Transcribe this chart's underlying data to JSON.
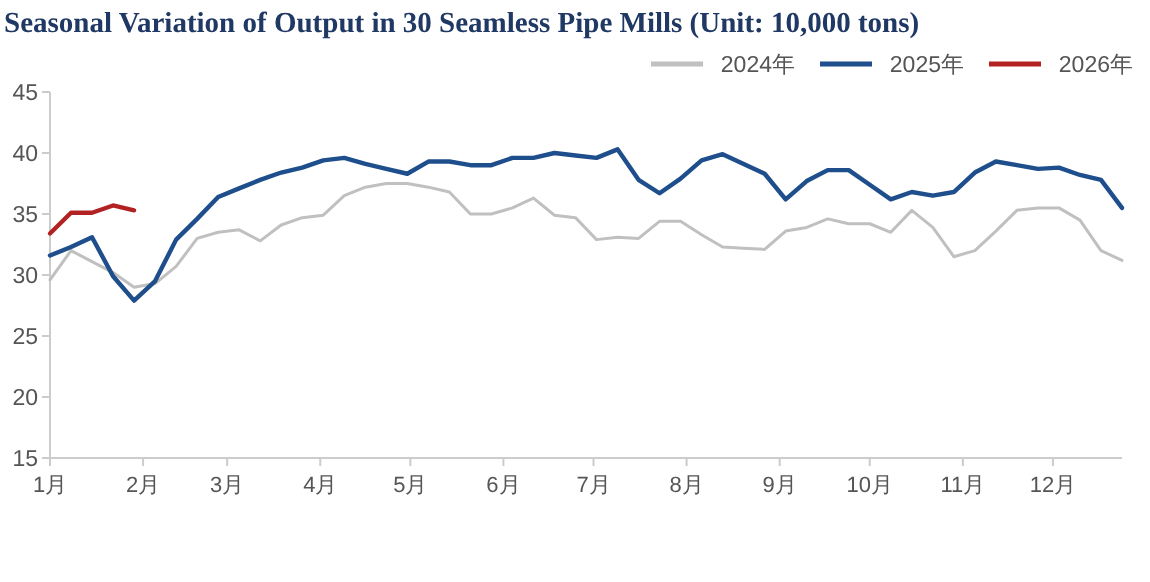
{
  "chart_data": {
    "type": "line",
    "title": "Seasonal Variation of Output in 30 Seamless Pipe Mills (Unit: 10,000 tons)",
    "x": [
      "--01-01",
      "--01-08",
      "--01-15",
      "--01-22",
      "--01-29",
      "--02-05",
      "--02-12",
      "--02-19",
      "--02-26",
      "--03-05",
      "--03-12",
      "--03-19",
      "--03-26",
      "--04-02",
      "--04-09",
      "--04-16",
      "--04-23",
      "--04-30",
      "--05-07",
      "--05-14",
      "--05-21",
      "--05-28",
      "--06-04",
      "--06-11",
      "--06-18",
      "--06-25",
      "--07-02",
      "--07-09",
      "--07-16",
      "--07-23",
      "--07-30",
      "--08-06",
      "--08-13",
      "--08-20",
      "--08-27",
      "--09-03",
      "--09-10",
      "--09-17",
      "--09-24",
      "--10-01",
      "--10-08",
      "--10-15",
      "--10-22",
      "--10-29",
      "--11-05",
      "--11-12",
      "--11-19",
      "--11-26",
      "--12-03",
      "--12-10",
      "--12-17",
      "--12-24"
    ],
    "series": [
      {
        "name": "2024年",
        "color": "#c0c0c0",
        "values": [
          29.6,
          32.0,
          31.1,
          30.2,
          29.0,
          29.3,
          30.7,
          33.0,
          33.5,
          33.7,
          32.8,
          34.1,
          34.7,
          34.9,
          36.5,
          37.2,
          37.5,
          37.5,
          37.2,
          36.8,
          35.0,
          35.0,
          35.5,
          36.3,
          34.9,
          34.7,
          32.9,
          33.1,
          33.0,
          34.4,
          34.4,
          33.3,
          32.3,
          32.2,
          32.1,
          33.6,
          33.9,
          34.6,
          34.2,
          34.2,
          33.5,
          35.3,
          33.9,
          31.5,
          32.0,
          33.6,
          35.3,
          35.5,
          35.5,
          34.5,
          32.0,
          31.2
        ]
      },
      {
        "name": "2025年",
        "color": "#1f4e8c",
        "values": [
          31.6,
          32.3,
          33.1,
          29.9,
          27.9,
          29.5,
          32.9,
          34.6,
          36.4,
          37.1,
          37.8,
          38.4,
          38.8,
          39.4,
          39.6,
          39.1,
          38.7,
          38.3,
          39.3,
          39.3,
          39.0,
          39.0,
          39.6,
          39.6,
          40.0,
          39.8,
          39.6,
          40.3,
          37.8,
          36.7,
          37.9,
          39.4,
          39.9,
          39.1,
          38.3,
          36.2,
          37.7,
          38.6,
          38.6,
          37.4,
          36.2,
          36.8,
          36.5,
          36.8,
          38.4,
          39.3,
          39.0,
          38.7,
          38.8,
          38.2,
          37.8,
          35.5
        ]
      },
      {
        "name": "2026年",
        "color": "#b22222",
        "x": [
          "--01-01",
          "--01-08",
          "--01-15",
          "--01-22",
          "--01-29"
        ],
        "values": [
          33.4,
          35.1,
          35.1,
          35.7,
          35.3
        ]
      }
    ],
    "xlim": [
      "--01-01",
      "--12-24"
    ],
    "xticks": [
      {
        "value": "--01-01",
        "label": "1月"
      },
      {
        "value": "--02-01",
        "label": "2月"
      },
      {
        "value": "--03-01",
        "label": "3月"
      },
      {
        "value": "--04-01",
        "label": "4月"
      },
      {
        "value": "--05-01",
        "label": "5月"
      },
      {
        "value": "--06-01",
        "label": "6月"
      },
      {
        "value": "--07-01",
        "label": "7月"
      },
      {
        "value": "--08-01",
        "label": "8月"
      },
      {
        "value": "--09-01",
        "label": "9月"
      },
      {
        "value": "--10-01",
        "label": "10月"
      },
      {
        "value": "--11-01",
        "label": "11月"
      },
      {
        "value": "--12-01",
        "label": "12月"
      }
    ],
    "ylim": [
      15,
      45
    ],
    "yticks": [
      15,
      20,
      25,
      30,
      35,
      40,
      45
    ],
    "legend": "top right"
  }
}
